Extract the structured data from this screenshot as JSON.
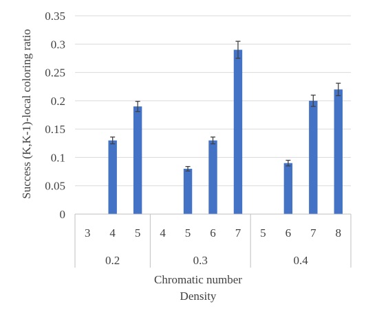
{
  "chart_data": {
    "type": "bar",
    "title": "",
    "ylabel": "Success (K,K-1)-local coloring ratio",
    "xlabel_lines": [
      "Chromatic number",
      "Density"
    ],
    "ylim": [
      0,
      0.35
    ],
    "y_ticks": [
      "0",
      "0.05",
      "0.1",
      "0.15",
      "0.2",
      "0.25",
      "0.3",
      "0.35"
    ],
    "grid": "horizontal",
    "legend": "none",
    "bar_color": "#4472c4",
    "groups": [
      {
        "density": "0.2",
        "points": [
          {
            "chromatic": "3",
            "value": 0,
            "error": 0
          },
          {
            "chromatic": "4",
            "value": 0.13,
            "error": 0.006
          },
          {
            "chromatic": "5",
            "value": 0.19,
            "error": 0.009
          }
        ]
      },
      {
        "density": "0.3",
        "points": [
          {
            "chromatic": "4",
            "value": 0,
            "error": 0
          },
          {
            "chromatic": "5",
            "value": 0.08,
            "error": 0.004
          },
          {
            "chromatic": "6",
            "value": 0.13,
            "error": 0.006
          },
          {
            "chromatic": "7",
            "value": 0.29,
            "error": 0.015
          }
        ]
      },
      {
        "density": "0.4",
        "points": [
          {
            "chromatic": "5",
            "value": 0,
            "error": 0
          },
          {
            "chromatic": "6",
            "value": 0.09,
            "error": 0.005
          },
          {
            "chromatic": "7",
            "value": 0.2,
            "error": 0.01
          },
          {
            "chromatic": "8",
            "value": 0.22,
            "error": 0.011
          }
        ]
      }
    ]
  }
}
